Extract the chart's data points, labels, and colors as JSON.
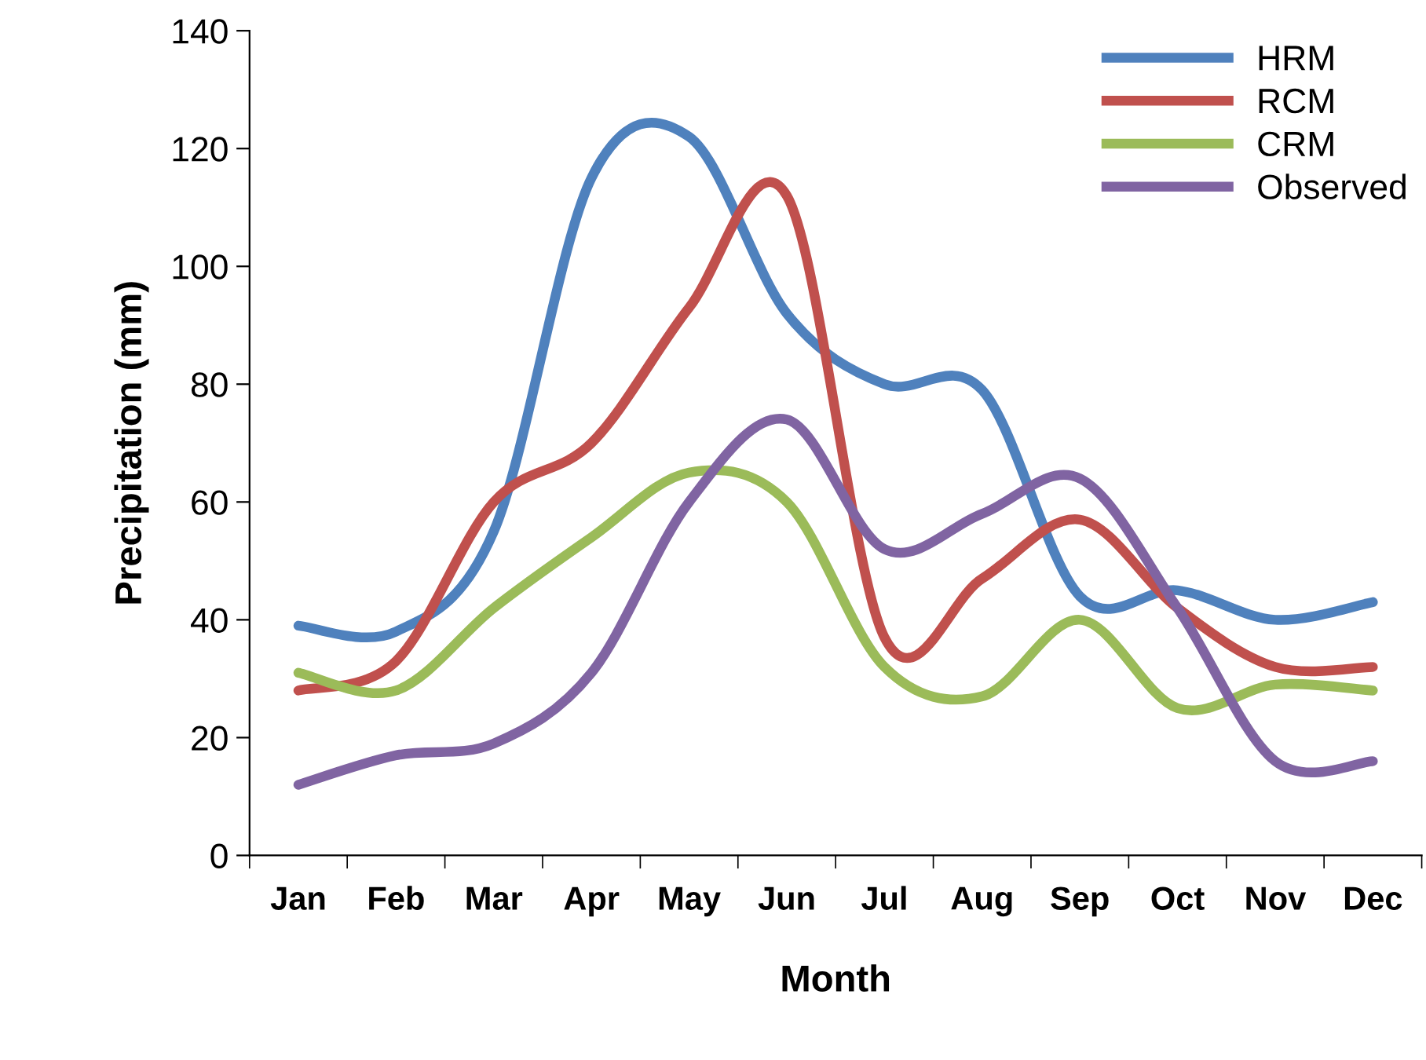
{
  "chart_data": {
    "type": "line",
    "xlabel": "Month",
    "ylabel": "Precipitation (mm)",
    "categories": [
      "Jan",
      "Feb",
      "Mar",
      "Apr",
      "May",
      "Jun",
      "Jul",
      "Aug",
      "Sep",
      "Oct",
      "Nov",
      "Dec"
    ],
    "series": [
      {
        "name": "HRM",
        "color": "#4f81bd",
        "values": [
          39,
          38,
          55,
          115,
          122,
          92,
          80,
          79,
          44,
          45,
          40,
          43
        ]
      },
      {
        "name": "RCM",
        "color": "#c0504d",
        "values": [
          28,
          33,
          60,
          70,
          93,
          112,
          37,
          47,
          57,
          42,
          32,
          32
        ]
      },
      {
        "name": "CRM",
        "color": "#9bbb59",
        "values": [
          31,
          28,
          42,
          54,
          65,
          60,
          32,
          27,
          40,
          25,
          29,
          28
        ]
      },
      {
        "name": "Observed",
        "color": "#8064a2",
        "values": [
          12,
          17,
          19,
          31,
          60,
          74,
          52,
          58,
          64,
          42,
          16,
          16
        ]
      }
    ],
    "ylim": [
      0,
      140
    ],
    "yticks": [
      0,
      20,
      40,
      60,
      80,
      100,
      120,
      140
    ],
    "grid": false,
    "legend": "top right",
    "marker": "none",
    "line_style": "solid"
  }
}
